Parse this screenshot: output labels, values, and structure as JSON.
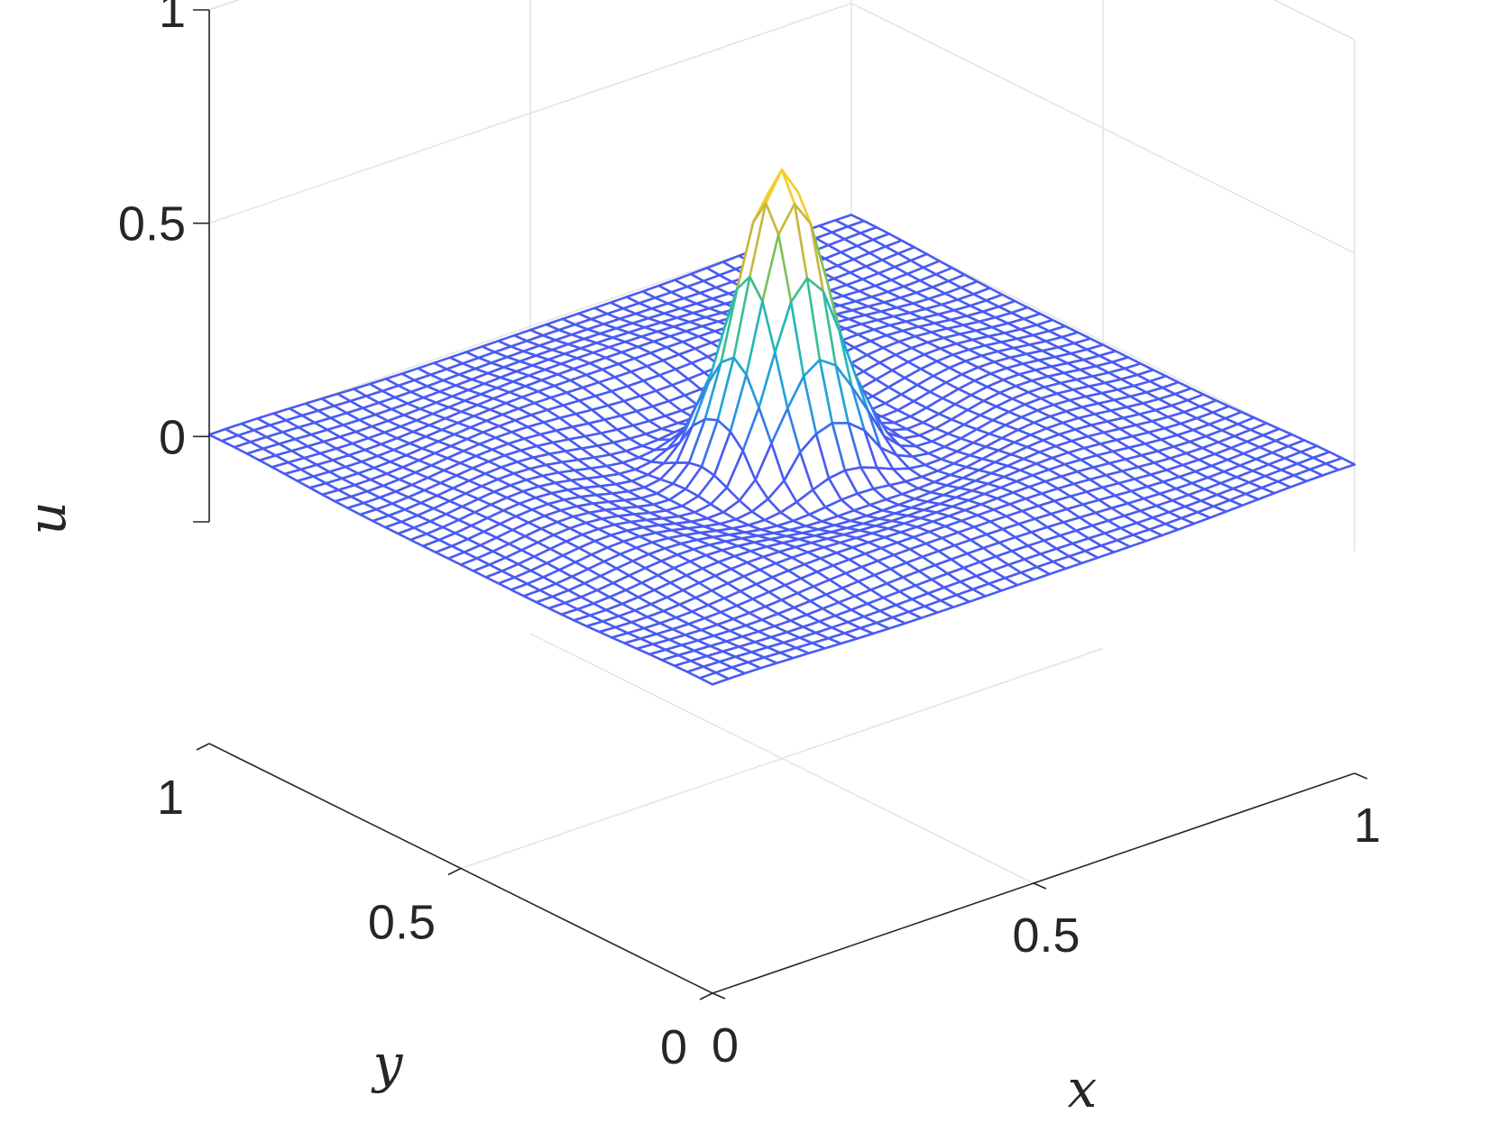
{
  "chart_data": {
    "type": "surface-mesh",
    "title": "",
    "xlabel": "x",
    "ylabel": "y",
    "zlabel": "u",
    "xlim": [
      0,
      1
    ],
    "ylim": [
      0,
      1
    ],
    "zlim": [
      -0.2,
      1
    ],
    "x_ticks": [
      {
        "value": 0,
        "label": "0"
      },
      {
        "value": 0.5,
        "label": "0.5"
      },
      {
        "value": 1,
        "label": "1"
      }
    ],
    "y_ticks": [
      {
        "value": 0,
        "label": "0"
      },
      {
        "value": 0.5,
        "label": "0.5"
      },
      {
        "value": 1,
        "label": "1"
      }
    ],
    "z_ticks": [
      {
        "value": 0,
        "label": "0"
      },
      {
        "value": 0.5,
        "label": "0.5"
      },
      {
        "value": 1,
        "label": "1"
      }
    ],
    "grid": true,
    "grid_size": 41,
    "surface": {
      "description_of_shape": "central peak near (0.5, 0.5) with max about 0.66, surrounded by small ripples",
      "peak_center": [
        0.5,
        0.5
      ],
      "peak_value": 0.66,
      "ripple_amplitude": 0.05
    },
    "colormap": [
      "#3e26a8",
      "#4a52f0",
      "#2f8ce6",
      "#14b4cf",
      "#3cc08e",
      "#a9c03a",
      "#f3ad3a",
      "#f9fb15"
    ],
    "mesh_base_color": "#4a5cf0"
  }
}
